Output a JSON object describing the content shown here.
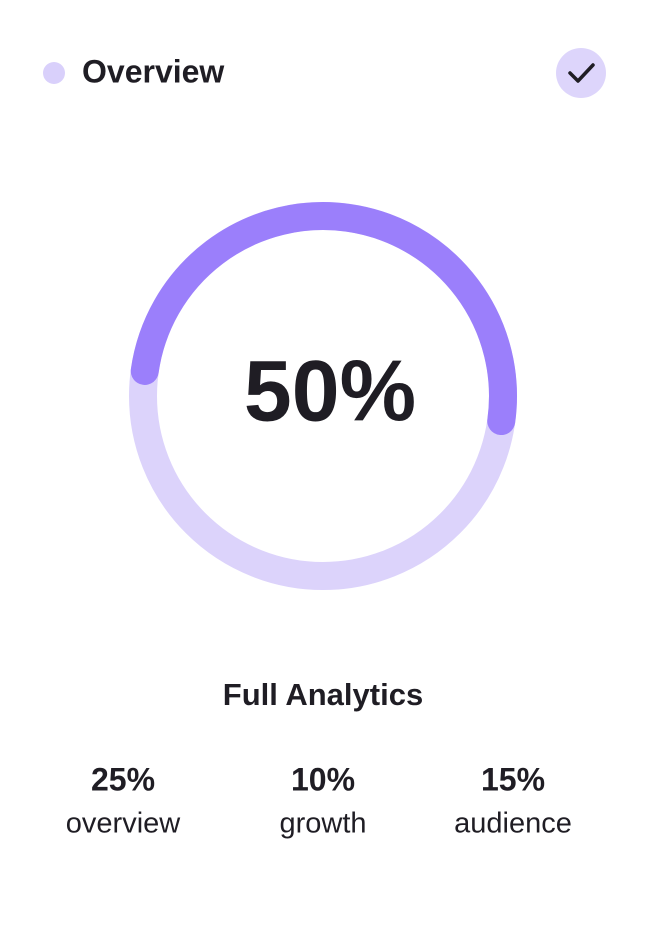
{
  "header": {
    "title": "Overview"
  },
  "progress": {
    "value": 50,
    "label": "50%"
  },
  "section_title": "Full Analytics",
  "stats": [
    {
      "value": "25%",
      "label": "overview"
    },
    {
      "value": "10%",
      "label": "growth"
    },
    {
      "value": "15%",
      "label": "audience"
    }
  ]
}
